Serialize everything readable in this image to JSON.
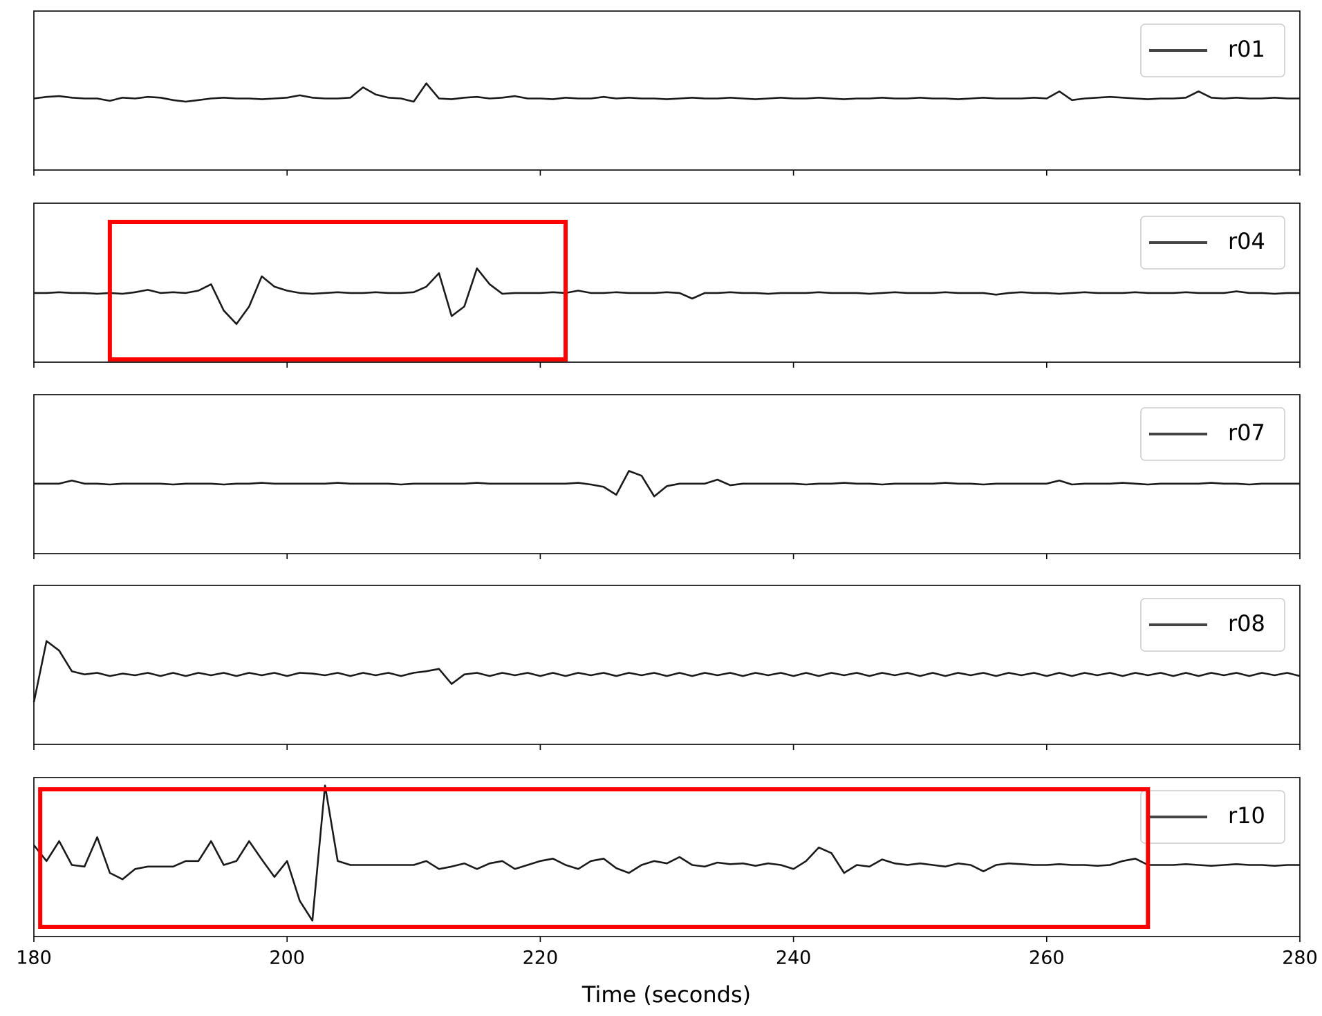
{
  "chart_data": {
    "type": "line",
    "subplots": true,
    "xlabel": "Time (seconds)",
    "xlim": [
      180,
      280
    ],
    "xticks": [
      180,
      200,
      220,
      240,
      260,
      280
    ],
    "ylim": [
      -1,
      1
    ],
    "legend": "upper right",
    "grid": false,
    "highlight_color": "#ff0000",
    "x": [
      180,
      181,
      182,
      183,
      184,
      185,
      186,
      187,
      188,
      189,
      190,
      191,
      192,
      193,
      194,
      195,
      196,
      197,
      198,
      199,
      200,
      201,
      202,
      203,
      204,
      205,
      206,
      207,
      208,
      209,
      210,
      211,
      212,
      213,
      214,
      215,
      216,
      217,
      218,
      219,
      220,
      221,
      222,
      223,
      224,
      225,
      226,
      227,
      228,
      229,
      230,
      231,
      232,
      233,
      234,
      235,
      236,
      237,
      238,
      239,
      240,
      241,
      242,
      243,
      244,
      245,
      246,
      247,
      248,
      249,
      250,
      251,
      252,
      253,
      254,
      255,
      256,
      257,
      258,
      259,
      260,
      261,
      262,
      263,
      264,
      265,
      266,
      267,
      268,
      269,
      270,
      271,
      272,
      273,
      274,
      275,
      276,
      277,
      278,
      279,
      280
    ],
    "series": [
      {
        "name": "r01",
        "color": "#1a1a1a",
        "values": [
          -0.1,
          -0.08,
          -0.07,
          -0.09,
          -0.1,
          -0.1,
          -0.13,
          -0.09,
          -0.1,
          -0.08,
          -0.09,
          -0.12,
          -0.14,
          -0.12,
          -0.1,
          -0.09,
          -0.1,
          -0.1,
          -0.11,
          -0.1,
          -0.09,
          -0.06,
          -0.09,
          -0.1,
          -0.1,
          -0.09,
          0.04,
          -0.05,
          -0.09,
          -0.1,
          -0.14,
          0.09,
          -0.1,
          -0.11,
          -0.09,
          -0.08,
          -0.1,
          -0.09,
          -0.07,
          -0.1,
          -0.1,
          -0.11,
          -0.09,
          -0.1,
          -0.1,
          -0.08,
          -0.1,
          -0.09,
          -0.1,
          -0.1,
          -0.11,
          -0.1,
          -0.09,
          -0.1,
          -0.1,
          -0.09,
          -0.1,
          -0.11,
          -0.1,
          -0.09,
          -0.1,
          -0.1,
          -0.09,
          -0.1,
          -0.11,
          -0.1,
          -0.1,
          -0.09,
          -0.1,
          -0.1,
          -0.09,
          -0.1,
          -0.1,
          -0.11,
          -0.1,
          -0.09,
          -0.1,
          -0.1,
          -0.1,
          -0.09,
          -0.1,
          -0.01,
          -0.12,
          -0.1,
          -0.09,
          -0.08,
          -0.09,
          -0.1,
          -0.11,
          -0.1,
          -0.1,
          -0.09,
          -0.01,
          -0.09,
          -0.1,
          -0.09,
          -0.1,
          -0.1,
          -0.09,
          -0.1,
          -0.1
        ]
      },
      {
        "name": "r04",
        "color": "#1a1a1a",
        "highlight_xlim": [
          186,
          222
        ],
        "values": [
          -0.13,
          -0.13,
          -0.12,
          -0.13,
          -0.13,
          -0.14,
          -0.13,
          -0.14,
          -0.12,
          -0.09,
          -0.13,
          -0.12,
          -0.13,
          -0.1,
          -0.02,
          -0.35,
          -0.52,
          -0.3,
          0.08,
          -0.05,
          -0.1,
          -0.13,
          -0.14,
          -0.13,
          -0.12,
          -0.13,
          -0.13,
          -0.12,
          -0.13,
          -0.13,
          -0.12,
          -0.05,
          0.12,
          -0.42,
          -0.3,
          0.18,
          -0.02,
          -0.14,
          -0.13,
          -0.13,
          -0.13,
          -0.12,
          -0.13,
          -0.1,
          -0.13,
          -0.13,
          -0.12,
          -0.13,
          -0.13,
          -0.13,
          -0.12,
          -0.13,
          -0.2,
          -0.13,
          -0.13,
          -0.12,
          -0.13,
          -0.13,
          -0.14,
          -0.13,
          -0.13,
          -0.13,
          -0.12,
          -0.13,
          -0.13,
          -0.13,
          -0.14,
          -0.13,
          -0.12,
          -0.13,
          -0.13,
          -0.13,
          -0.12,
          -0.13,
          -0.13,
          -0.13,
          -0.15,
          -0.13,
          -0.12,
          -0.13,
          -0.13,
          -0.14,
          -0.13,
          -0.12,
          -0.13,
          -0.13,
          -0.13,
          -0.12,
          -0.13,
          -0.13,
          -0.13,
          -0.12,
          -0.13,
          -0.13,
          -0.13,
          -0.11,
          -0.13,
          -0.13,
          -0.14,
          -0.13,
          -0.13
        ]
      },
      {
        "name": "r07",
        "color": "#1a1a1a",
        "values": [
          -0.12,
          -0.12,
          -0.12,
          -0.08,
          -0.12,
          -0.12,
          -0.13,
          -0.12,
          -0.12,
          -0.12,
          -0.12,
          -0.13,
          -0.12,
          -0.12,
          -0.12,
          -0.13,
          -0.12,
          -0.12,
          -0.11,
          -0.12,
          -0.12,
          -0.12,
          -0.12,
          -0.12,
          -0.11,
          -0.12,
          -0.12,
          -0.12,
          -0.12,
          -0.13,
          -0.12,
          -0.12,
          -0.12,
          -0.12,
          -0.12,
          -0.11,
          -0.12,
          -0.12,
          -0.12,
          -0.12,
          -0.12,
          -0.12,
          -0.12,
          -0.11,
          -0.13,
          -0.16,
          -0.26,
          0.04,
          -0.02,
          -0.28,
          -0.15,
          -0.12,
          -0.12,
          -0.12,
          -0.07,
          -0.14,
          -0.12,
          -0.12,
          -0.12,
          -0.12,
          -0.12,
          -0.13,
          -0.12,
          -0.12,
          -0.11,
          -0.12,
          -0.12,
          -0.13,
          -0.12,
          -0.12,
          -0.12,
          -0.12,
          -0.11,
          -0.12,
          -0.12,
          -0.13,
          -0.12,
          -0.12,
          -0.12,
          -0.12,
          -0.12,
          -0.08,
          -0.13,
          -0.12,
          -0.12,
          -0.12,
          -0.11,
          -0.12,
          -0.13,
          -0.12,
          -0.12,
          -0.12,
          -0.12,
          -0.11,
          -0.12,
          -0.12,
          -0.13,
          -0.12,
          -0.12,
          -0.12,
          -0.12
        ]
      },
      {
        "name": "r08",
        "color": "#1a1a1a",
        "values": [
          -0.47,
          0.3,
          0.18,
          -0.08,
          -0.12,
          -0.1,
          -0.14,
          -0.11,
          -0.13,
          -0.1,
          -0.14,
          -0.1,
          -0.14,
          -0.1,
          -0.13,
          -0.1,
          -0.14,
          -0.1,
          -0.13,
          -0.1,
          -0.14,
          -0.1,
          -0.11,
          -0.13,
          -0.1,
          -0.14,
          -0.1,
          -0.13,
          -0.1,
          -0.14,
          -0.1,
          -0.08,
          -0.05,
          -0.24,
          -0.12,
          -0.1,
          -0.14,
          -0.1,
          -0.13,
          -0.1,
          -0.14,
          -0.1,
          -0.14,
          -0.1,
          -0.13,
          -0.1,
          -0.14,
          -0.1,
          -0.13,
          -0.1,
          -0.14,
          -0.1,
          -0.14,
          -0.1,
          -0.13,
          -0.1,
          -0.14,
          -0.1,
          -0.13,
          -0.1,
          -0.14,
          -0.1,
          -0.14,
          -0.1,
          -0.13,
          -0.1,
          -0.14,
          -0.1,
          -0.13,
          -0.1,
          -0.14,
          -0.1,
          -0.14,
          -0.1,
          -0.13,
          -0.1,
          -0.14,
          -0.1,
          -0.13,
          -0.1,
          -0.14,
          -0.1,
          -0.14,
          -0.1,
          -0.13,
          -0.1,
          -0.14,
          -0.1,
          -0.13,
          -0.1,
          -0.14,
          -0.1,
          -0.14,
          -0.1,
          -0.13,
          -0.1,
          -0.14,
          -0.1,
          -0.13,
          -0.1,
          -0.14
        ]
      },
      {
        "name": "r10",
        "color": "#1a1a1a",
        "highlight_xlim": [
          180.5,
          268
        ],
        "values": [
          0.15,
          -0.05,
          0.2,
          -0.1,
          -0.12,
          0.25,
          -0.2,
          -0.28,
          -0.15,
          -0.12,
          -0.12,
          -0.12,
          -0.05,
          -0.05,
          0.2,
          -0.1,
          -0.05,
          0.2,
          -0.03,
          -0.25,
          -0.05,
          -0.55,
          -0.8,
          0.9,
          -0.05,
          -0.1,
          -0.1,
          -0.1,
          -0.1,
          -0.1,
          -0.1,
          -0.05,
          -0.15,
          -0.12,
          -0.08,
          -0.15,
          -0.08,
          -0.05,
          -0.15,
          -0.1,
          -0.05,
          -0.02,
          -0.1,
          -0.15,
          -0.05,
          -0.02,
          -0.14,
          -0.2,
          -0.1,
          -0.05,
          -0.08,
          0.0,
          -0.1,
          -0.12,
          -0.07,
          -0.09,
          -0.08,
          -0.11,
          -0.08,
          -0.1,
          -0.15,
          -0.05,
          0.12,
          0.05,
          -0.2,
          -0.1,
          -0.12,
          -0.03,
          -0.08,
          -0.1,
          -0.08,
          -0.1,
          -0.12,
          -0.08,
          -0.1,
          -0.18,
          -0.1,
          -0.08,
          -0.09,
          -0.1,
          -0.1,
          -0.09,
          -0.1,
          -0.1,
          -0.11,
          -0.1,
          -0.05,
          -0.02,
          -0.1,
          -0.1,
          -0.1,
          -0.09,
          -0.1,
          -0.11,
          -0.1,
          -0.09,
          -0.1,
          -0.1,
          -0.11,
          -0.1,
          -0.1
        ]
      }
    ]
  }
}
